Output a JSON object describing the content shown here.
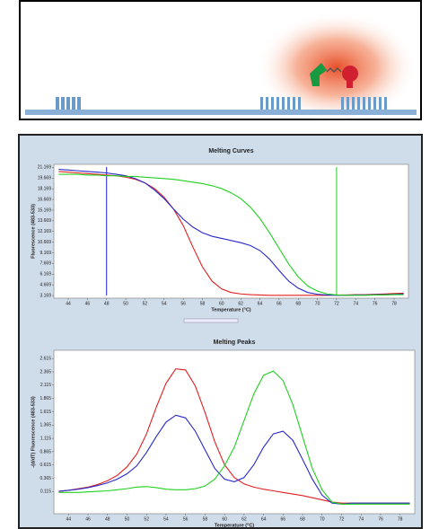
{
  "chart_data": [
    {
      "type": "line",
      "title": "Melting Curves",
      "x_label": "Temperature (°C)",
      "y_label": "Fluorescence (483-533)",
      "x": [
        43,
        44,
        45,
        46,
        47,
        48,
        49,
        50,
        51,
        52,
        53,
        54,
        55,
        56,
        57,
        58,
        59,
        60,
        61,
        62,
        63,
        64,
        65,
        66,
        67,
        68,
        69,
        70,
        71,
        72,
        73,
        74,
        75,
        76,
        77,
        78,
        79
      ],
      "xlim": [
        42.5,
        79.5
      ],
      "xticks": [
        44,
        46,
        48,
        50,
        52,
        54,
        56,
        58,
        60,
        62,
        64,
        66,
        68,
        70,
        72,
        74,
        76,
        78
      ],
      "ylim": [
        2.8,
        21.6
      ],
      "yticks": [
        3.169,
        4.669,
        6.169,
        7.669,
        9.169,
        10.669,
        12.169,
        13.669,
        15.169,
        16.669,
        18.169,
        19.669,
        21.169
      ],
      "markers": [
        {
          "x": 48,
          "color": "#2020d0"
        },
        {
          "x": 72,
          "color": "#20d020"
        }
      ],
      "series": [
        {
          "color": "#e02020",
          "values": [
            20.6,
            20.5,
            20.4,
            20.3,
            20.2,
            20.1,
            20.0,
            19.8,
            19.5,
            19.0,
            18.2,
            17.0,
            15.3,
            13.0,
            10.0,
            7.2,
            5.2,
            4.1,
            3.6,
            3.4,
            3.3,
            3.25,
            3.2,
            3.2,
            3.2,
            3.2,
            3.2,
            3.2,
            3.2,
            3.25,
            3.25,
            3.3,
            3.3,
            3.35,
            3.4,
            3.45,
            3.5
          ]
        },
        {
          "color": "#2828c8",
          "values": [
            20.9,
            20.8,
            20.7,
            20.6,
            20.5,
            20.4,
            20.2,
            20.0,
            19.6,
            19.0,
            18.0,
            16.8,
            15.3,
            13.9,
            12.8,
            12.0,
            11.5,
            11.2,
            10.9,
            10.6,
            10.2,
            9.5,
            8.3,
            6.7,
            5.2,
            4.2,
            3.6,
            3.35,
            3.25,
            3.2,
            3.2,
            3.25,
            3.25,
            3.3,
            3.3,
            3.35,
            3.4
          ]
        },
        {
          "color": "#20d020",
          "values": [
            20.2,
            20.2,
            20.2,
            20.1,
            20.1,
            20.0,
            20.0,
            19.9,
            19.9,
            19.8,
            19.7,
            19.6,
            19.5,
            19.3,
            19.1,
            18.9,
            18.6,
            18.2,
            17.6,
            16.8,
            15.6,
            14.0,
            12.0,
            9.8,
            7.6,
            5.8,
            4.5,
            3.8,
            3.4,
            3.25,
            3.2,
            3.2,
            3.2,
            3.25,
            3.25,
            3.3,
            3.3
          ]
        }
      ]
    },
    {
      "type": "line",
      "title": "Melting Peaks",
      "x_label": "Temperature (°C)",
      "y_label": "-(d/dT) Fluorescence (483-533)",
      "x": [
        43,
        44,
        45,
        46,
        47,
        48,
        49,
        50,
        51,
        52,
        53,
        54,
        55,
        56,
        57,
        58,
        59,
        60,
        61,
        62,
        63,
        64,
        65,
        66,
        67,
        68,
        69,
        70,
        71,
        72,
        73,
        74,
        75,
        76,
        77,
        78,
        79
      ],
      "xlim": [
        42.5,
        79.5
      ],
      "xticks": [
        44,
        46,
        48,
        50,
        52,
        54,
        56,
        58,
        60,
        62,
        64,
        66,
        68,
        70,
        72,
        74,
        76,
        78
      ],
      "ylim": [
        -0.3,
        2.77
      ],
      "yticks": [
        0.115,
        0.365,
        0.615,
        0.865,
        1.115,
        1.365,
        1.615,
        1.865,
        2.115,
        2.365,
        2.615
      ],
      "series": [
        {
          "color": "#e02020",
          "values": [
            0.12,
            0.14,
            0.17,
            0.2,
            0.25,
            0.32,
            0.42,
            0.58,
            0.82,
            1.2,
            1.7,
            2.15,
            2.42,
            2.4,
            2.1,
            1.6,
            1.05,
            0.62,
            0.38,
            0.26,
            0.2,
            0.16,
            0.13,
            0.1,
            0.07,
            0.04,
            0.0,
            -0.04,
            -0.08,
            -0.1,
            -0.1,
            -0.1,
            -0.1,
            -0.1,
            -0.1,
            -0.1,
            -0.1
          ]
        },
        {
          "color": "#2828c8",
          "values": [
            0.12,
            0.14,
            0.16,
            0.19,
            0.23,
            0.28,
            0.35,
            0.45,
            0.6,
            0.85,
            1.15,
            1.42,
            1.55,
            1.5,
            1.25,
            0.9,
            0.55,
            0.35,
            0.3,
            0.38,
            0.62,
            0.95,
            1.2,
            1.25,
            1.08,
            0.72,
            0.35,
            0.05,
            -0.1,
            -0.12,
            -0.1,
            -0.1,
            -0.1,
            -0.1,
            -0.1,
            -0.1,
            -0.1
          ]
        },
        {
          "color": "#20d020",
          "values": [
            0.1,
            0.1,
            0.1,
            0.11,
            0.12,
            0.13,
            0.15,
            0.17,
            0.2,
            0.21,
            0.19,
            0.16,
            0.15,
            0.15,
            0.17,
            0.22,
            0.35,
            0.6,
            0.95,
            1.45,
            1.95,
            2.3,
            2.38,
            2.2,
            1.75,
            1.15,
            0.55,
            0.15,
            -0.08,
            -0.12,
            -0.12,
            -0.12,
            -0.12,
            -0.12,
            -0.12,
            -0.12,
            -0.12
          ]
        }
      ]
    }
  ]
}
